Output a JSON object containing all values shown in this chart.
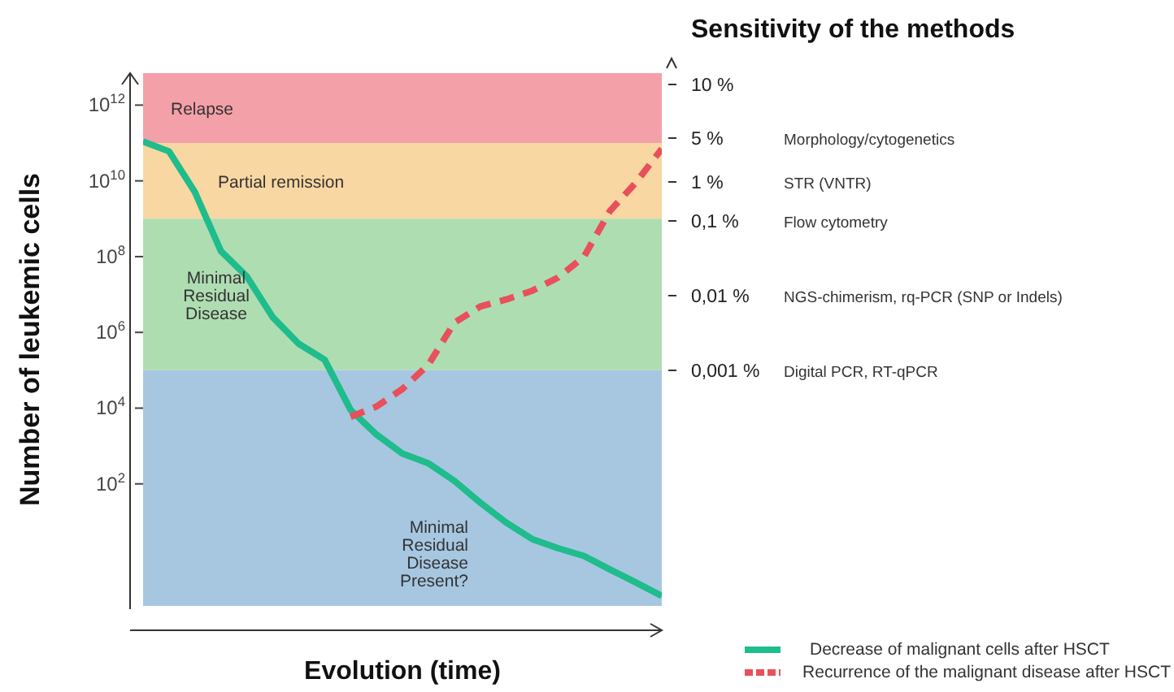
{
  "chart_data": {
    "type": "line",
    "xlabel": "Evolution (time)",
    "ylabel": "Number of leukemic cells",
    "title": "Sensitivity of the methods",
    "log": true,
    "ylim": [
      0.06,
      7000000000000.0
    ],
    "yticks": [
      {
        "value": 100,
        "label": "10$^{2}$"
      },
      {
        "value": 10000,
        "label": "10$^{4}$"
      },
      {
        "value": 1000000.0,
        "label": "10$^{6}$"
      },
      {
        "value": 100000000.0,
        "label": "10$^{8}$"
      },
      {
        "value": 10000000000.0,
        "label": "10$^{10}$"
      },
      {
        "value": 1000000000000.0,
        "label": "10$^{12}$"
      }
    ],
    "categories": [
      null,
      null,
      null,
      null,
      null,
      null,
      null,
      null,
      null,
      null,
      null,
      null,
      null,
      null,
      null,
      null,
      null,
      null,
      null,
      null,
      null
    ],
    "legend": "bottom right",
    "marker": "none",
    "series": [
      {
        "name": "Decrease of malignant cells after HSCT",
        "color": "#1fbc8c",
        "line_style": "solid",
        "values": [
          110000000000.0,
          60000000000.0,
          5000000000.0,
          140000000.0,
          30000000.0,
          2500000.0,
          500000.0,
          190000.0,
          9000,
          2000,
          630,
          350,
          120,
          32,
          9.5,
          3.5,
          2,
          1.25,
          0.55,
          0.25,
          0.11
        ]
      },
      {
        "name": "Recurrence of the malignant disease after HSCT",
        "color": "#e8505b",
        "line_style": "dashed",
        "values": [
          null,
          null,
          null,
          null,
          null,
          null,
          null,
          null,
          5900,
          11000,
          32000,
          140000,
          1800000.0,
          4800000.0,
          7400000.0,
          12500000.0,
          28000000.0,
          100000000.0,
          1600000000.0,
          9000000000.0,
          70000000000.0
        ]
      }
    ],
    "bands": [
      {
        "axis": "y",
        "from": 100000000000.0,
        "to": 7000000000000.0,
        "label": "Relapse",
        "color": "#f4a0a8"
      },
      {
        "axis": "y",
        "from": 1000000000.0,
        "to": 100000000000.0,
        "label": "Partial remission",
        "color": "#f9d7a2"
      },
      {
        "axis": "y",
        "from": 100000.0,
        "to": 1000000000.0,
        "label": "Minimal\nResidual\nDisease",
        "color": "#afddb2"
      },
      {
        "axis": "y",
        "from": 0.06,
        "to": 100000.0,
        "label": "Minimal\nResidual\nDisease\nPresent?",
        "color": "#a7c7e1"
      }
    ],
    "annotations": [
      "10 %",
      "5 %",
      "1 %",
      "0,1 %",
      "0,01 %",
      "0,001 %",
      "Morphology/cytogenetics",
      "STR (VNTR)",
      "Flow cytometry",
      "NGS-chimerism, rq-PCR (SNP or Indels)",
      "Digital PCR, RT-qPCR"
    ]
  }
}
